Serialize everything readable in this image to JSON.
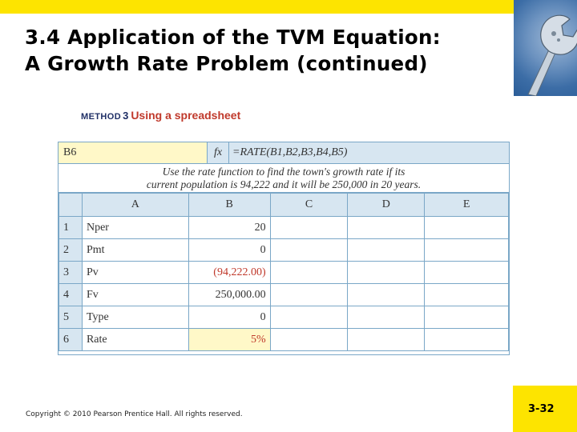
{
  "title_line1": "3.4  Application of the TVM Equation:",
  "title_line2": "A Growth Rate Problem (continued)",
  "method": {
    "tag": "METHOD",
    "number": "3",
    "text": "Using a spreadsheet"
  },
  "sheet": {
    "cell_ref": "B6",
    "fx": "fx",
    "formula": "=RATE(B1,B2,B3,B4,B5)",
    "caption_line1": "Use the rate function to find the town's growth rate if its",
    "caption_line2": "current population is 94,222 and it will be 250,000 in 20 years.",
    "columns": [
      "A",
      "B",
      "C",
      "D",
      "E"
    ],
    "rows": [
      {
        "num": "1",
        "label": "Nper",
        "value": "20"
      },
      {
        "num": "2",
        "label": "Pmt",
        "value": "0"
      },
      {
        "num": "3",
        "label": "Pv",
        "value": "(94,222.00)"
      },
      {
        "num": "4",
        "label": "Fv",
        "value": "250,000.00"
      },
      {
        "num": "5",
        "label": "Type",
        "value": "0"
      },
      {
        "num": "6",
        "label": "Rate",
        "value": "5%"
      }
    ]
  },
  "copyright": "Copyright © 2010 Pearson Prentice Hall. All rights reserved.",
  "slide_number": "3-32",
  "colors": {
    "accent_yellow": "#fde400",
    "grid_blue": "#d7e6f1",
    "negative_red": "#c0392b"
  }
}
